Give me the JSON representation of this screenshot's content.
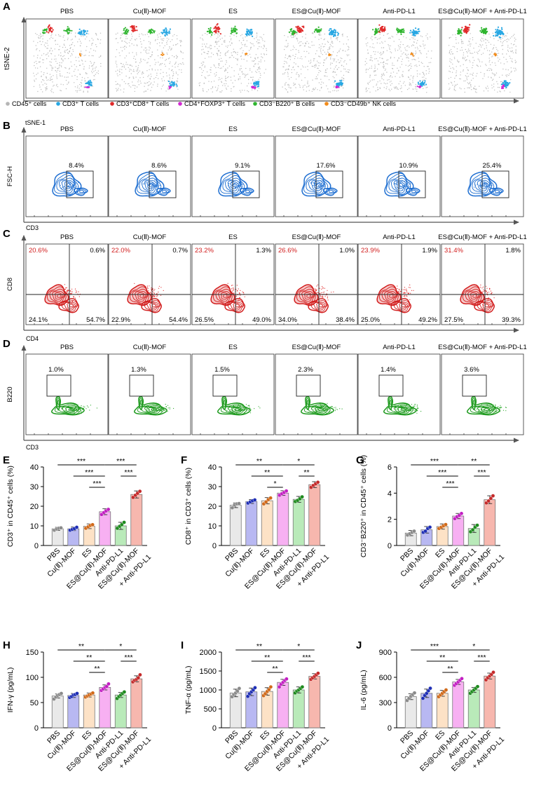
{
  "groups": [
    "PBS",
    "Cu(Ⅱ)-MOF",
    "ES",
    "ES@Cu(Ⅱ)-MOF",
    "Anti-PD-L1",
    "ES@Cu(Ⅱ)-MOF + Anti-PD-L1"
  ],
  "bar_group_labels": [
    "PBS",
    "Cu(Ⅱ)-MOF",
    "ES",
    "ES@Cu(Ⅱ)-MOF",
    "Anti-PD-L1",
    "ES@Cu(Ⅱ)-MOF",
    "+ Anti-PD-L1"
  ],
  "group_colors": [
    "#e9e9e9",
    "#b8b8f2",
    "#fde2c6",
    "#f7b0f2",
    "#b9eab9",
    "#f7b7ae"
  ],
  "dot_colors": [
    "#8a8a8a",
    "#1f2fb5",
    "#d16a1a",
    "#c21fc2",
    "#1e8a1e",
    "#c42a2a"
  ],
  "panels": {
    "A": {
      "letter": "A",
      "ylabel": "tSNE-2",
      "xlabel": "tSNE-1",
      "legend": [
        {
          "label": "CD45⁺ cells",
          "color": "#b5b5b5"
        },
        {
          "label": "CD3⁺ T cells",
          "color": "#27a7e3"
        },
        {
          "label": "CD3⁺CD8⁺ T cells",
          "color": "#e02a2a"
        },
        {
          "label": "CD4⁺FOXP3⁺ T cells",
          "color": "#d12ad1"
        },
        {
          "label": "CD3⁻B220⁺ B cells",
          "color": "#2fb52f"
        },
        {
          "label": "CD3⁻CD49b⁺ NK cells",
          "color": "#f28c1b"
        }
      ]
    },
    "B": {
      "letter": "B",
      "ylabel": "FSC-H",
      "xlabel": "CD3",
      "gate_values": [
        "8.4%",
        "8.6%",
        "9.1%",
        "17.6%",
        "10.9%",
        "25.4%"
      ]
    },
    "C": {
      "letter": "C",
      "ylabel": "CD8",
      "xlabel": "CD4",
      "ul": [
        "20.6%",
        "22.0%",
        "23.2%",
        "26.6%",
        "23.9%",
        "31.4%"
      ],
      "ur": [
        "0.6%",
        "0.7%",
        "1.3%",
        "1.0%",
        "1.9%",
        "1.8%"
      ],
      "ll": [
        "24.1%",
        "22.9%",
        "26.5%",
        "34.0%",
        "25.0%",
        "27.5%"
      ],
      "lr": [
        "54.7%",
        "54.4%",
        "49.0%",
        "38.4%",
        "49.2%",
        "39.3%"
      ]
    },
    "D": {
      "letter": "D",
      "ylabel": "B220",
      "xlabel": "CD3",
      "gate_values": [
        "1.0%",
        "1.3%",
        "1.5%",
        "2.3%",
        "1.4%",
        "3.6%"
      ]
    }
  },
  "chart_data": [
    {
      "id": "E",
      "type": "bar",
      "letter": "E",
      "ylabel": "CD3⁺ in CD45⁺ cells (%)",
      "ylim": [
        0,
        40
      ],
      "yticks": [
        0,
        10,
        20,
        30,
        40
      ],
      "values": [
        8.5,
        8.5,
        9.8,
        17.2,
        10.0,
        26.0
      ],
      "errors": [
        0.8,
        0.9,
        1.2,
        1.5,
        1.8,
        1.8
      ],
      "points": [
        [
          7.8,
          8.4,
          8.8,
          9.0
        ],
        [
          7.8,
          8.2,
          8.6,
          9.3
        ],
        [
          8.8,
          9.5,
          10.2,
          10.6
        ],
        [
          15.8,
          16.8,
          17.6,
          18.4
        ],
        [
          8.8,
          9.8,
          10.6,
          11.8
        ],
        [
          24.5,
          25.6,
          26.6,
          27.6
        ]
      ],
      "sig": [
        {
          "from": 0,
          "to": 3,
          "label": "***",
          "level": 3
        },
        {
          "from": 3,
          "to": 5,
          "label": "***",
          "level": 3
        },
        {
          "from": 1,
          "to": 3,
          "label": "***",
          "level": 2
        },
        {
          "from": 4,
          "to": 5,
          "label": "***",
          "level": 2
        },
        {
          "from": 2,
          "to": 3,
          "label": "***",
          "level": 1
        }
      ]
    },
    {
      "id": "F",
      "type": "bar",
      "letter": "F",
      "ylabel": "CD8⁺ in CD3⁺ cells (%)",
      "ylim": [
        0,
        40
      ],
      "yticks": [
        0,
        10,
        20,
        30,
        40
      ],
      "values": [
        20.5,
        22.4,
        22.8,
        26.7,
        23.5,
        31.0
      ],
      "errors": [
        1.2,
        1.0,
        1.6,
        1.2,
        1.5,
        1.5
      ],
      "points": [
        [
          19.2,
          20.6,
          21.2,
          21.4
        ],
        [
          21.6,
          22.2,
          22.8,
          23.2
        ],
        [
          21.2,
          22.2,
          23.4,
          24.2
        ],
        [
          25.6,
          26.4,
          27.0,
          27.8
        ],
        [
          22.4,
          23.0,
          23.8,
          24.8
        ],
        [
          29.6,
          30.6,
          31.4,
          32.2
        ]
      ],
      "sig": [
        {
          "from": 0,
          "to": 3,
          "label": "**",
          "level": 3
        },
        {
          "from": 3,
          "to": 5,
          "label": "*",
          "level": 3
        },
        {
          "from": 1,
          "to": 3,
          "label": "**",
          "level": 2
        },
        {
          "from": 4,
          "to": 5,
          "label": "**",
          "level": 2
        },
        {
          "from": 2,
          "to": 3,
          "label": "*",
          "level": 1
        }
      ]
    },
    {
      "id": "G",
      "type": "bar",
      "letter": "G",
      "ylabel": "CD3⁻B220⁺ in CD45⁺ cells (%)",
      "ylim": [
        0,
        6
      ],
      "yticks": [
        0,
        2,
        4,
        6
      ],
      "values": [
        0.95,
        1.2,
        1.45,
        2.25,
        1.3,
        3.5
      ],
      "errors": [
        0.2,
        0.25,
        0.2,
        0.2,
        0.3,
        0.3
      ],
      "points": [
        [
          0.8,
          0.9,
          1.0,
          1.1
        ],
        [
          1.0,
          1.1,
          1.3,
          1.4
        ],
        [
          1.3,
          1.4,
          1.5,
          1.6
        ],
        [
          2.05,
          2.2,
          2.3,
          2.45
        ],
        [
          1.05,
          1.2,
          1.4,
          1.55
        ],
        [
          3.25,
          3.4,
          3.6,
          3.8
        ]
      ],
      "sig": [
        {
          "from": 0,
          "to": 3,
          "label": "***",
          "level": 3
        },
        {
          "from": 3,
          "to": 5,
          "label": "**",
          "level": 3
        },
        {
          "from": 1,
          "to": 3,
          "label": "***",
          "level": 2
        },
        {
          "from": 4,
          "to": 5,
          "label": "***",
          "level": 2
        },
        {
          "from": 2,
          "to": 3,
          "label": "***",
          "level": 1
        }
      ]
    },
    {
      "id": "H",
      "type": "bar",
      "letter": "H",
      "ylabel": "IFN-γ (pg/mL)",
      "ylim": [
        0,
        150
      ],
      "yticks": [
        0,
        50,
        100,
        150
      ],
      "values": [
        63,
        64,
        65,
        80,
        65,
        97
      ],
      "errors": [
        4,
        4,
        4,
        5,
        5,
        6
      ],
      "points": [
        [
          57,
          61,
          64,
          66,
          68
        ],
        [
          60,
          62,
          65,
          66,
          68
        ],
        [
          61,
          63,
          65,
          67,
          69
        ],
        [
          74,
          77,
          80,
          82,
          87
        ],
        [
          58,
          62,
          65,
          68,
          71
        ],
        [
          91,
          94,
          96,
          99,
          105
        ]
      ],
      "sig": [
        {
          "from": 0,
          "to": 3,
          "label": "**",
          "level": 3
        },
        {
          "from": 3,
          "to": 5,
          "label": "*",
          "level": 3
        },
        {
          "from": 1,
          "to": 3,
          "label": "**",
          "level": 2
        },
        {
          "from": 4,
          "to": 5,
          "label": "***",
          "level": 2
        },
        {
          "from": 2,
          "to": 3,
          "label": "**",
          "level": 1
        }
      ]
    },
    {
      "id": "I",
      "type": "bar",
      "letter": "I",
      "ylabel": "TNF-α (pg/mL)",
      "ylim": [
        0,
        2000
      ],
      "yticks": [
        0,
        500,
        1000,
        1500,
        2000
      ],
      "values": [
        920,
        950,
        960,
        1200,
        1000,
        1360
      ],
      "errors": [
        100,
        100,
        100,
        80,
        80,
        70
      ],
      "points": [
        [
          820,
          880,
          920,
          970,
          1040
        ],
        [
          830,
          900,
          950,
          1000,
          1060
        ],
        [
          850,
          900,
          960,
          1010,
          1080
        ],
        [
          1080,
          1150,
          1200,
          1250,
          1290
        ],
        [
          920,
          970,
          1000,
          1040,
          1080
        ],
        [
          1280,
          1320,
          1360,
          1400,
          1440
        ]
      ],
      "sig": [
        {
          "from": 0,
          "to": 3,
          "label": "**",
          "level": 3
        },
        {
          "from": 3,
          "to": 5,
          "label": "*",
          "level": 3
        },
        {
          "from": 1,
          "to": 3,
          "label": "**",
          "level": 2
        },
        {
          "from": 4,
          "to": 5,
          "label": "***",
          "level": 2
        },
        {
          "from": 2,
          "to": 3,
          "label": "**",
          "level": 1
        }
      ]
    },
    {
      "id": "J",
      "type": "bar",
      "letter": "J",
      "ylabel": "IL-6 (pg/mL)",
      "ylim": [
        0,
        900
      ],
      "yticks": [
        0,
        300,
        600,
        900
      ],
      "values": [
        370,
        410,
        410,
        545,
        450,
        615
      ],
      "errors": [
        35,
        50,
        35,
        30,
        30,
        35
      ],
      "points": [
        [
          325,
          350,
          375,
          395,
          415
        ],
        [
          350,
          385,
          410,
          440,
          470
        ],
        [
          370,
          390,
          410,
          430,
          450
        ],
        [
          505,
          525,
          545,
          565,
          585
        ],
        [
          410,
          430,
          450,
          470,
          490
        ],
        [
          570,
          595,
          615,
          635,
          660
        ]
      ],
      "sig": [
        {
          "from": 0,
          "to": 3,
          "label": "***",
          "level": 3
        },
        {
          "from": 3,
          "to": 5,
          "label": "*",
          "level": 3
        },
        {
          "from": 1,
          "to": 3,
          "label": "**",
          "level": 2
        },
        {
          "from": 4,
          "to": 5,
          "label": "***",
          "level": 2
        },
        {
          "from": 2,
          "to": 3,
          "label": "**",
          "level": 1
        }
      ]
    }
  ]
}
